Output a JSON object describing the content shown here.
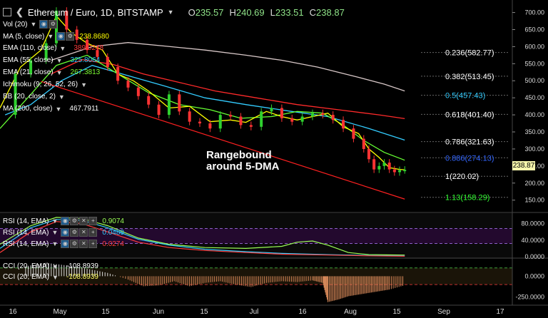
{
  "header": {
    "title": "Ethereum / Euro, 1D, BITSTAMP",
    "ohlc": [
      {
        "k": "O",
        "v": "235.57"
      },
      {
        "k": "H",
        "v": "240.69"
      },
      {
        "k": "L",
        "v": "233.51"
      },
      {
        "k": "C",
        "v": "238.87"
      }
    ]
  },
  "indicators": [
    {
      "id": "vol",
      "label": "Vol (20)",
      "value": "",
      "color": "#ffffff"
    },
    {
      "id": "ma5",
      "label": "MA (5, close)",
      "value": "238.8680",
      "color": "#ffff00"
    },
    {
      "id": "ema110",
      "label": "EMA (110, close)",
      "value": "389.0248",
      "color": "#ff3b3b"
    },
    {
      "id": "ema55",
      "label": "EMA (55, close)",
      "value": "325.8064",
      "color": "#33ccff"
    },
    {
      "id": "ema21",
      "label": "EMA (21, close)",
      "value": "267.3813",
      "color": "#7dff33"
    },
    {
      "id": "ichimoku",
      "label": "Ichimoku (9, 26, 52, 26)",
      "value": "",
      "color": "#ffffff"
    },
    {
      "id": "bb",
      "label": "BB (20, close, 2)",
      "value": "",
      "color": "#ffffff"
    },
    {
      "id": "ma200",
      "label": "MA (200, close)",
      "value": "467.7911",
      "color": "#ffffff"
    }
  ],
  "annotation": "Rangebound\naround 5-DMA",
  "price_tag": "238.87",
  "rsi_panel": [
    {
      "label": "RSI (14, EMA)",
      "value": "0.9074",
      "color": "#9aff55"
    },
    {
      "label": "RSI (14, EMA)",
      "value": "0.0489",
      "color": "#33ccff"
    },
    {
      "label": "RSI (14, EMA)",
      "value": "0.0274",
      "color": "#ff3b3b"
    }
  ],
  "cci_panel": [
    {
      "label": "CCI (20, EMA)",
      "value": "-108.8939",
      "color": "#ffffff"
    },
    {
      "label": "CCI (20, EMA)",
      "value": "-108.8939",
      "color": "#ffff66"
    }
  ],
  "chart_data": {
    "type": "line",
    "x_ticks": [
      "16",
      "May",
      "15",
      "Jun",
      "15",
      "Jul",
      "16",
      "Aug",
      "15",
      "Sep",
      "17"
    ],
    "price_axis": {
      "ticks": [
        700,
        650,
        600,
        550,
        500,
        450,
        400,
        350,
        300,
        250,
        200,
        150
      ],
      "ylim": [
        118,
        720
      ]
    },
    "rsi_axis": {
      "ticks": [
        "80.0000",
        "40.0000",
        "0.0000"
      ],
      "ylim": [
        0,
        100
      ]
    },
    "cci_axis": {
      "ticks": [
        "0.0000",
        "-250.0000"
      ],
      "ylim": [
        -330,
        200
      ]
    },
    "fib_levels": [
      {
        "label": "0.236(582.77)",
        "value": 582.77,
        "color": "#ffffff"
      },
      {
        "label": "0.382(513.45)",
        "value": 513.45,
        "color": "#ffffff"
      },
      {
        "label": "0.5(457.43)",
        "value": 457.43,
        "color": "#33ccff"
      },
      {
        "label": "0.618(401.40)",
        "value": 401.4,
        "color": "#ffffff"
      },
      {
        "label": "0.786(321.63)",
        "value": 321.63,
        "color": "#ffffff"
      },
      {
        "label": "0.886(274.13)",
        "value": 274.13,
        "color": "#3366ff"
      },
      {
        "label": "1(220.02)",
        "value": 220.02,
        "color": "#ffffff"
      },
      {
        "label": "1.13(158.29)",
        "value": 158.29,
        "color": "#33ff33"
      }
    ],
    "trendline": {
      "x": [
        0.08,
        0.79
      ],
      "y": [
        498,
        153
      ],
      "color": "#ff2020"
    },
    "series": [
      {
        "key": "ma200",
        "color": "#d8c8c8",
        "x": [
          0.1,
          0.18,
          0.25,
          0.32,
          0.4,
          0.48,
          0.55,
          0.62,
          0.7,
          0.75,
          0.79
        ],
        "y": [
          560,
          600,
          612,
          602,
          590,
          575,
          560,
          540,
          510,
          490,
          470
        ]
      },
      {
        "key": "ema110",
        "color": "#ff2a2a",
        "x": [
          0.1,
          0.16,
          0.22,
          0.28,
          0.35,
          0.42,
          0.5,
          0.58,
          0.66,
          0.74,
          0.79
        ],
        "y": [
          520,
          562,
          548,
          520,
          495,
          470,
          450,
          430,
          415,
          400,
          389
        ]
      },
      {
        "key": "ema55",
        "color": "#33ccff",
        "x": [
          0.01,
          0.06,
          0.12,
          0.18,
          0.25,
          0.32,
          0.4,
          0.48,
          0.56,
          0.64,
          0.72,
          0.79
        ],
        "y": [
          400,
          430,
          500,
          545,
          515,
          485,
          450,
          430,
          412,
          395,
          360,
          326
        ]
      },
      {
        "key": "ema21",
        "color": "#66ff33",
        "x": [
          0.0,
          0.06,
          0.11,
          0.17,
          0.23,
          0.29,
          0.35,
          0.41,
          0.47,
          0.53,
          0.58,
          0.63,
          0.67,
          0.71,
          0.75,
          0.79
        ],
        "y": [
          360,
          460,
          545,
          575,
          520,
          465,
          430,
          415,
          390,
          395,
          410,
          405,
          370,
          325,
          290,
          267
        ]
      },
      {
        "key": "ma5",
        "color": "#ffff00",
        "x": [
          0.0,
          0.04,
          0.08,
          0.11,
          0.14,
          0.17,
          0.2,
          0.23,
          0.26,
          0.29,
          0.33,
          0.37,
          0.41,
          0.45,
          0.48,
          0.52,
          0.55,
          0.58,
          0.61,
          0.64,
          0.67,
          0.7,
          0.72,
          0.74,
          0.76,
          0.78,
          0.79
        ],
        "y": [
          420,
          540,
          590,
          690,
          640,
          610,
          590,
          520,
          500,
          470,
          420,
          425,
          380,
          385,
          378,
          410,
          395,
          385,
          395,
          405,
          365,
          345,
          300,
          275,
          245,
          240,
          239
        ]
      },
      {
        "key": "close",
        "color": "#d0d0d0",
        "x": [
          0.0,
          0.03,
          0.06,
          0.09,
          0.11,
          0.13,
          0.15,
          0.17,
          0.19,
          0.21,
          0.23,
          0.25,
          0.27,
          0.29,
          0.31,
          0.33,
          0.35,
          0.37,
          0.39,
          0.41,
          0.43,
          0.45,
          0.47,
          0.49,
          0.51,
          0.53,
          0.55,
          0.57,
          0.59,
          0.61,
          0.63,
          0.65,
          0.67,
          0.69,
          0.71,
          0.72,
          0.73,
          0.74,
          0.75,
          0.76,
          0.77,
          0.78,
          0.79
        ],
        "y": [
          400,
          520,
          560,
          610,
          705,
          650,
          620,
          590,
          570,
          540,
          500,
          480,
          455,
          430,
          400,
          460,
          410,
          380,
          375,
          360,
          400,
          395,
          370,
          365,
          410,
          420,
          390,
          380,
          395,
          405,
          400,
          385,
          360,
          330,
          300,
          270,
          240,
          250,
          260,
          240,
          232,
          238,
          239
        ]
      }
    ],
    "rsi_series": [
      {
        "color": "#9aff55",
        "x": [
          0.0,
          0.06,
          0.11,
          0.16,
          0.21,
          0.27,
          0.33,
          0.4,
          0.48,
          0.55,
          0.58,
          0.61,
          0.64,
          0.68,
          0.72,
          0.79
        ],
        "y": [
          30,
          75,
          95,
          92,
          75,
          45,
          30,
          22,
          20,
          25,
          35,
          38,
          28,
          10,
          5,
          4
        ]
      },
      {
        "color": "#33ccff",
        "x": [
          0.0,
          0.06,
          0.11,
          0.16,
          0.21,
          0.27,
          0.33,
          0.4,
          0.48,
          0.55,
          0.64,
          0.72,
          0.79
        ],
        "y": [
          20,
          70,
          90,
          88,
          70,
          42,
          28,
          18,
          12,
          8,
          5,
          3,
          2
        ]
      },
      {
        "color": "#ff3b3b",
        "x": [
          0.0,
          0.06,
          0.11,
          0.16,
          0.21,
          0.27,
          0.33,
          0.4,
          0.48,
          0.55,
          0.64,
          0.72,
          0.79
        ],
        "y": [
          10,
          60,
          85,
          80,
          60,
          35,
          22,
          15,
          10,
          6,
          4,
          2,
          1
        ]
      }
    ],
    "cci_series": {
      "x": [
        0.05,
        0.09,
        0.13,
        0.17,
        0.21,
        0.25,
        0.28,
        0.31,
        0.34,
        0.37,
        0.4,
        0.43,
        0.46,
        0.49,
        0.52,
        0.55,
        0.58,
        0.61,
        0.63,
        0.64,
        0.66,
        0.68,
        0.7,
        0.72,
        0.74,
        0.76,
        0.79
      ],
      "y": [
        120,
        160,
        130,
        90,
        40,
        -40,
        -120,
        -110,
        -60,
        -120,
        -80,
        -60,
        -100,
        -130,
        -80,
        -60,
        -70,
        -50,
        -80,
        -310,
        -280,
        -240,
        -220,
        -200,
        -180,
        -160,
        -109
      ]
    }
  }
}
